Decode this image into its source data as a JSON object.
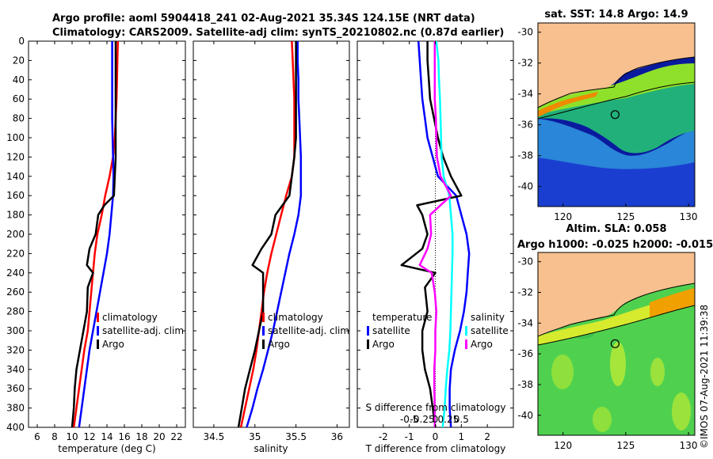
{
  "header": {
    "line1": "Argo profile: aoml 5904418_241 02-Aug-2021 35.34S 124.15E (NRT data)",
    "line2": "Climatology: CARS2009. Satellite-adj clim: synTS_20210802.nc (0.87d earlier)"
  },
  "colors": {
    "argo": "#000000",
    "climatology": "#ff0000",
    "satellite": "#0000ff",
    "t_diff": "#0000ff",
    "s_diff": "#00ffff",
    "argo_t_diff": "#000000",
    "argo_s_diff": "#ff00ff"
  },
  "depth_axis": {
    "ylim": [
      0,
      400
    ],
    "ticks": [
      0,
      20,
      40,
      60,
      80,
      100,
      120,
      140,
      160,
      180,
      200,
      220,
      240,
      260,
      280,
      300,
      320,
      340,
      360,
      380,
      400
    ]
  },
  "chart_data": [
    {
      "id": "temperature",
      "type": "line",
      "xlabel": "temperature (deg C)",
      "xlim": [
        5,
        23
      ],
      "xticks": [
        6,
        8,
        10,
        12,
        14,
        16,
        18,
        20,
        22
      ],
      "ylim": [
        0,
        400
      ],
      "legend": [
        "climatology",
        "satellite-adj. clim",
        "Argo"
      ],
      "series": [
        {
          "name": "climatology",
          "color": "#ff0000",
          "depth": [
            0,
            20,
            40,
            60,
            80,
            100,
            120,
            140,
            160,
            180,
            200,
            220,
            240,
            260,
            280,
            300,
            320,
            340,
            360,
            380,
            400
          ],
          "values": [
            15.25,
            15.2,
            15.15,
            15.1,
            15.0,
            14.9,
            14.7,
            14.3,
            13.8,
            13.4,
            12.9,
            12.6,
            12.4,
            12.2,
            12.0,
            11.8,
            11.4,
            11.1,
            10.8,
            10.5,
            10.2
          ]
        },
        {
          "name": "satellite-adj. clim",
          "color": "#0000ff",
          "depth": [
            0,
            20,
            40,
            60,
            80,
            100,
            120,
            140,
            160,
            180,
            200,
            220,
            240,
            260,
            280,
            300,
            320,
            340,
            360,
            380,
            400
          ],
          "values": [
            14.6,
            14.6,
            14.6,
            14.6,
            14.6,
            14.65,
            14.7,
            14.75,
            14.7,
            14.5,
            14.3,
            14.0,
            13.6,
            13.2,
            12.8,
            12.4,
            12.0,
            11.7,
            11.4,
            11.1,
            10.8
          ]
        },
        {
          "name": "Argo",
          "color": "#000000",
          "depth": [
            0,
            20,
            40,
            60,
            80,
            100,
            120,
            140,
            160,
            170,
            180,
            200,
            215,
            232,
            240,
            255,
            280,
            300,
            320,
            340,
            360,
            380,
            400
          ],
          "values": [
            15.0,
            15.0,
            15.0,
            15.0,
            15.0,
            15.0,
            15.0,
            14.9,
            14.8,
            13.7,
            13.0,
            12.7,
            12.0,
            11.7,
            12.4,
            11.8,
            11.7,
            11.3,
            10.9,
            10.5,
            10.3,
            10.2,
            10.0
          ]
        }
      ]
    },
    {
      "id": "salinity",
      "type": "line",
      "xlabel": "salinity",
      "xlim": [
        34.25,
        36.15
      ],
      "xticks": [
        34.5,
        35,
        35.5,
        36
      ],
      "xticklabels": [
        "34.5",
        "35",
        "35.5",
        "36"
      ],
      "ylim": [
        0,
        400
      ],
      "legend": [
        "climatology",
        "satellite-adj. clim",
        "Argo"
      ],
      "series": [
        {
          "name": "climatology",
          "color": "#ff0000",
          "depth": [
            0,
            20,
            40,
            60,
            80,
            100,
            120,
            140,
            160,
            180,
            200,
            220,
            240,
            260,
            280,
            300,
            320,
            340,
            360,
            380,
            400
          ],
          "values": [
            35.45,
            35.46,
            35.47,
            35.48,
            35.48,
            35.48,
            35.48,
            35.45,
            35.38,
            35.32,
            35.26,
            35.2,
            35.15,
            35.11,
            35.08,
            35.05,
            35.02,
            34.98,
            34.93,
            34.88,
            34.83
          ]
        },
        {
          "name": "satellite-adj. clim",
          "color": "#0000ff",
          "depth": [
            0,
            20,
            40,
            60,
            80,
            100,
            120,
            140,
            160,
            180,
            200,
            220,
            240,
            260,
            280,
            300,
            320,
            340,
            360,
            380,
            400
          ],
          "values": [
            35.52,
            35.52,
            35.53,
            35.53,
            35.54,
            35.55,
            35.56,
            35.56,
            35.56,
            35.53,
            35.48,
            35.42,
            35.37,
            35.32,
            35.27,
            35.22,
            35.16,
            35.1,
            35.03,
            34.97,
            34.9
          ]
        },
        {
          "name": "Argo",
          "color": "#000000",
          "depth": [
            0,
            20,
            40,
            60,
            80,
            100,
            120,
            140,
            160,
            180,
            200,
            215,
            232,
            240,
            260,
            280,
            300,
            320,
            340,
            360,
            380,
            400
          ],
          "values": [
            35.5,
            35.5,
            35.5,
            35.5,
            35.5,
            35.5,
            35.48,
            35.45,
            35.42,
            35.25,
            35.2,
            35.08,
            34.97,
            35.1,
            35.1,
            35.1,
            35.05,
            35.0,
            34.94,
            34.88,
            34.84,
            34.8
          ]
        }
      ]
    },
    {
      "id": "difference",
      "type": "line",
      "xlabel": "T difference from climatology",
      "xlim": [
        -3,
        3
      ],
      "xticks": [
        -2,
        -1,
        0,
        1,
        2
      ],
      "xticklabels": [
        "-2",
        "-1",
        "0",
        "1",
        "2"
      ],
      "top_axis": {
        "label": "S difference from climatology",
        "ticks": [
          -0.5,
          -0.25,
          0,
          0.25,
          0.5
        ],
        "ticklabels": [
          "-0.5",
          "-0.25",
          "0",
          "0.25",
          "0.5"
        ]
      },
      "ylim": [
        0,
        400
      ],
      "legend_temperature": {
        "title": "temperature",
        "items": [
          "satellite",
          "Argo"
        ]
      },
      "legend_salinity": {
        "title": "salinity",
        "items": [
          "satellite",
          "Argo"
        ]
      },
      "series": [
        {
          "name": "temperature satellite",
          "color": "#0000ff",
          "depth": [
            0,
            20,
            40,
            60,
            80,
            100,
            120,
            140,
            160,
            180,
            200,
            220,
            240,
            260,
            280,
            300,
            320,
            340,
            360,
            380,
            400
          ],
          "values": [
            -0.65,
            -0.6,
            -0.55,
            -0.5,
            -0.4,
            -0.3,
            -0.1,
            0.1,
            0.8,
            1.0,
            1.2,
            1.3,
            1.25,
            1.2,
            1.1,
            0.95,
            0.75,
            0.6,
            0.55,
            0.55,
            0.6
          ]
        },
        {
          "name": "temperature Argo",
          "color": "#000000",
          "depth": [
            0,
            20,
            40,
            60,
            80,
            100,
            120,
            140,
            160,
            170,
            180,
            200,
            215,
            232,
            240,
            255,
            280,
            300,
            320,
            340,
            360,
            380,
            400
          ],
          "values": [
            -0.3,
            -0.3,
            -0.25,
            -0.2,
            -0.05,
            0.1,
            0.3,
            0.6,
            1.0,
            -0.7,
            -0.5,
            -0.3,
            -0.5,
            -1.3,
            0.0,
            -0.4,
            -0.3,
            -0.5,
            -0.5,
            -0.4,
            -0.2,
            -0.1,
            0.0
          ]
        },
        {
          "name": "salinity satellite",
          "color": "#00ffff",
          "depth": [
            0,
            20,
            40,
            60,
            80,
            100,
            120,
            140,
            160,
            180,
            200,
            220,
            240,
            260,
            280,
            300,
            320,
            340,
            360,
            380,
            400
          ],
          "values": [
            0.02,
            0.06,
            0.07,
            0.09,
            0.1,
            0.11,
            0.12,
            0.16,
            0.27,
            0.3,
            0.33,
            0.33,
            0.32,
            0.31,
            0.3,
            0.29,
            0.27,
            0.23,
            0.2,
            0.18,
            0.14
          ]
        },
        {
          "name": "salinity Argo",
          "color": "#ff00ff",
          "depth": [
            0,
            20,
            40,
            60,
            80,
            100,
            120,
            140,
            160,
            180,
            200,
            215,
            232,
            240,
            260,
            280,
            300,
            320,
            340,
            360,
            380,
            400
          ],
          "values": [
            -0.01,
            -0.01,
            -0.01,
            -0.01,
            0.01,
            0.02,
            0.03,
            0.1,
            0.3,
            -0.1,
            -0.08,
            -0.15,
            -0.3,
            -0.07,
            -0.01,
            0.02,
            0.0,
            0.0,
            -0.02,
            -0.02,
            -0.01,
            -0.01
          ]
        }
      ]
    },
    {
      "id": "sst_map",
      "type": "heatmap",
      "title": "sat. SST: 14.8 Argo: 14.9",
      "xlim": [
        118,
        130.5
      ],
      "ylim": [
        -41.3,
        -29.4
      ],
      "xticks": [
        120,
        125,
        130
      ],
      "yticks": [
        -30,
        -32,
        -34,
        -36,
        -38,
        -40
      ],
      "marker": {
        "lon": 124.15,
        "lat": -35.34
      }
    },
    {
      "id": "sla_map",
      "type": "heatmap",
      "title1": "Altim. SLA: 0.058",
      "title2": "Argo h1000: -0.025 h2000: -0.015",
      "xlim": [
        118,
        130.5
      ],
      "ylim": [
        -41.3,
        -29.4
      ],
      "xticks": [
        120,
        125,
        130
      ],
      "yticks": [
        -30,
        -32,
        -34,
        -36,
        -38,
        -40
      ],
      "marker": {
        "lon": 124.15,
        "lat": -35.34
      }
    }
  ],
  "side_label": "©IMOS 07-Aug-2021 11:39:38"
}
